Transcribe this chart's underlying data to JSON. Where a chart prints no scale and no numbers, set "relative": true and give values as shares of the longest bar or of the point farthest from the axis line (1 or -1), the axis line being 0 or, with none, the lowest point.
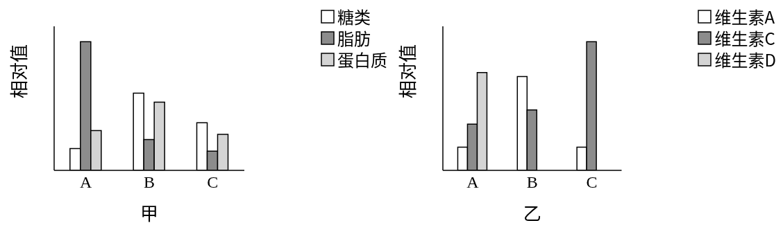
{
  "chart_data": [
    {
      "type": "bar",
      "xlabel": "甲",
      "ylabel": "相对值",
      "categories": [
        "A",
        "B",
        "C"
      ],
      "relative": true,
      "legend": "top right",
      "series": [
        {
          "name": "糖类",
          "color": "#ffffff",
          "values": [
            0.17,
            0.6,
            0.37
          ]
        },
        {
          "name": "脂肪",
          "color": "#8c8c8c",
          "values": [
            1,
            0.24,
            0.15
          ]
        },
        {
          "name": "蛋白质",
          "color": "#d4d4d4",
          "values": [
            0.31,
            0.53,
            0.28
          ]
        }
      ]
    },
    {
      "type": "bar",
      "xlabel": "乙",
      "ylabel": "相对值",
      "categories": [
        "A",
        "B",
        "C"
      ],
      "relative": true,
      "legend": "top right",
      "series": [
        {
          "name": "维生素A",
          "color": "#ffffff",
          "values": [
            0.18,
            0.73,
            0.18
          ]
        },
        {
          "name": "维生素C",
          "color": "#8c8c8c",
          "values": [
            0.36,
            0.47,
            1
          ]
        },
        {
          "name": "维生素D",
          "color": "#d4d4d4",
          "values": [
            0.76,
            null,
            null
          ]
        }
      ]
    }
  ]
}
